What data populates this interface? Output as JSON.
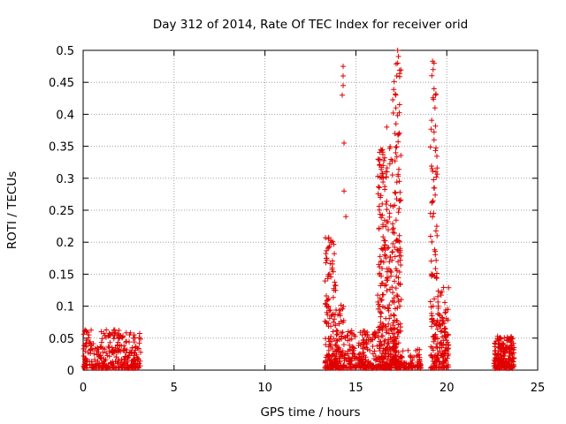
{
  "chart_data": {
    "type": "scatter",
    "title": "Day 312 of 2014, Rate Of TEC Index for receiver orid",
    "xlabel": "GPS time / hours",
    "ylabel": "ROTI / TECUs",
    "xlim": [
      0,
      25
    ],
    "ylim": [
      0,
      0.5
    ],
    "xticks": [
      0,
      5,
      10,
      15,
      20,
      25
    ],
    "yticks": [
      0,
      0.05,
      0.1,
      0.15,
      0.2,
      0.25,
      0.3,
      0.35,
      0.4,
      0.45,
      0.5
    ],
    "grid": true,
    "marker": "+",
    "color": "#e00000",
    "clusters": [
      {
        "name": "c1",
        "x_range": [
          0.0,
          3.2
        ],
        "y_max": 0.06,
        "count": 320
      },
      {
        "name": "c2",
        "x_range": [
          13.3,
          13.9
        ],
        "y_max": 0.205,
        "count": 150
      },
      {
        "name": "c3",
        "x_range": [
          13.9,
          14.4
        ],
        "y_max": 0.1,
        "count": 90
      },
      {
        "name": "c4",
        "x_range": [
          14.4,
          15.5
        ],
        "y_max": 0.06,
        "count": 110
      },
      {
        "name": "c5",
        "x_range": [
          15.5,
          16.2
        ],
        "y_max": 0.06,
        "count": 80
      },
      {
        "name": "c6",
        "x_range": [
          16.2,
          17.0
        ],
        "y_max": 0.35,
        "count": 260
      },
      {
        "name": "c7",
        "x_range": [
          17.0,
          17.5
        ],
        "y_max": 0.5,
        "count": 200
      },
      {
        "name": "c8",
        "x_range": [
          17.5,
          18.6
        ],
        "y_max": 0.03,
        "count": 70
      },
      {
        "name": "c9",
        "x_range": [
          19.1,
          19.5
        ],
        "y_max": 0.48,
        "count": 110
      },
      {
        "name": "c10",
        "x_range": [
          19.5,
          20.1
        ],
        "y_max": 0.13,
        "count": 110
      },
      {
        "name": "c11",
        "x_range": [
          22.6,
          23.7
        ],
        "y_max": 0.05,
        "count": 220
      }
    ],
    "highlights": [
      {
        "x": 1.0,
        "y": 0.06
      },
      {
        "x": 2.7,
        "y": 0.035
      },
      {
        "x": 14.3,
        "y": 0.475
      },
      {
        "x": 14.3,
        "y": 0.46
      },
      {
        "x": 14.3,
        "y": 0.445
      },
      {
        "x": 14.25,
        "y": 0.43
      },
      {
        "x": 14.35,
        "y": 0.355
      },
      {
        "x": 14.35,
        "y": 0.28
      },
      {
        "x": 14.45,
        "y": 0.24
      },
      {
        "x": 16.7,
        "y": 0.38
      },
      {
        "x": 16.5,
        "y": 0.32
      },
      {
        "x": 16.5,
        "y": 0.3
      },
      {
        "x": 17.3,
        "y": 0.5
      },
      {
        "x": 17.3,
        "y": 0.48
      },
      {
        "x": 17.25,
        "y": 0.46
      },
      {
        "x": 17.2,
        "y": 0.43
      },
      {
        "x": 17.2,
        "y": 0.41
      },
      {
        "x": 17.15,
        "y": 0.37
      },
      {
        "x": 19.3,
        "y": 0.48
      },
      {
        "x": 19.25,
        "y": 0.47
      },
      {
        "x": 19.3,
        "y": 0.44
      },
      {
        "x": 19.35,
        "y": 0.41
      },
      {
        "x": 19.3,
        "y": 0.36
      },
      {
        "x": 19.4,
        "y": 0.31
      },
      {
        "x": 19.1,
        "y": 0.245
      },
      {
        "x": 19.45,
        "y": 0.225
      },
      {
        "x": 13.5,
        "y": 0.205
      }
    ]
  }
}
